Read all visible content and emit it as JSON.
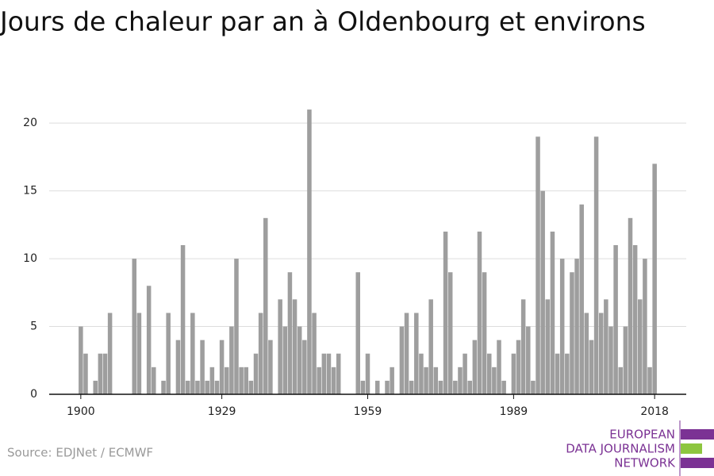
{
  "chart_data": {
    "type": "bar",
    "title": "Jours de chaleur par an à Oldenbourg et environs",
    "source": "Source: EDJNet / ECMWF",
    "logo": [
      "EUROPEAN",
      "DATA JOURNALISM",
      "NETWORK"
    ],
    "x": [
      1900,
      1901,
      1902,
      1903,
      1904,
      1905,
      1906,
      1907,
      1908,
      1909,
      1910,
      1911,
      1912,
      1913,
      1914,
      1915,
      1916,
      1917,
      1918,
      1919,
      1920,
      1921,
      1922,
      1923,
      1924,
      1925,
      1926,
      1927,
      1928,
      1929,
      1930,
      1931,
      1932,
      1933,
      1934,
      1935,
      1936,
      1937,
      1938,
      1939,
      1940,
      1941,
      1942,
      1943,
      1944,
      1945,
      1946,
      1947,
      1948,
      1949,
      1950,
      1951,
      1952,
      1953,
      1954,
      1955,
      1956,
      1957,
      1958,
      1959,
      1960,
      1961,
      1962,
      1963,
      1964,
      1965,
      1966,
      1967,
      1968,
      1969,
      1970,
      1971,
      1972,
      1973,
      1974,
      1975,
      1976,
      1977,
      1978,
      1979,
      1980,
      1981,
      1982,
      1983,
      1984,
      1985,
      1986,
      1987,
      1988,
      1989,
      1990,
      1991,
      1992,
      1993,
      1994,
      1995,
      1996,
      1997,
      1998,
      1999,
      2000,
      2001,
      2002,
      2003,
      2004,
      2005,
      2006,
      2007,
      2008,
      2009,
      2010,
      2011,
      2012,
      2013,
      2014,
      2015,
      2016,
      2017,
      2018
    ],
    "values": [
      5,
      3,
      0,
      1,
      3,
      3,
      6,
      0,
      0,
      0,
      0,
      10,
      6,
      0,
      8,
      2,
      0,
      1,
      6,
      0,
      4,
      11,
      1,
      6,
      1,
      4,
      1,
      2,
      1,
      4,
      2,
      5,
      10,
      2,
      2,
      1,
      3,
      6,
      13,
      4,
      0,
      7,
      5,
      9,
      7,
      5,
      4,
      21,
      6,
      2,
      3,
      3,
      2,
      3,
      0,
      0,
      0,
      9,
      1,
      3,
      0,
      1,
      0,
      1,
      2,
      0,
      5,
      6,
      1,
      6,
      3,
      2,
      7,
      2,
      1,
      12,
      9,
      1,
      2,
      3,
      1,
      4,
      12,
      9,
      3,
      2,
      4,
      1,
      0,
      3,
      4,
      7,
      5,
      1,
      19,
      15,
      7,
      12,
      3,
      10,
      3,
      9,
      10,
      14,
      6,
      4,
      19,
      6,
      7,
      5,
      11,
      2,
      5,
      13,
      11,
      7,
      10,
      2,
      17
    ],
    "color": "#9e9e9e",
    "xlim": [
      1893.5,
      2024.5
    ],
    "xticks": [
      1900,
      1929,
      1959,
      1989,
      2018
    ],
    "ylim": [
      0,
      22
    ],
    "yticks": [
      0,
      5,
      10,
      15,
      20
    ],
    "grid": true
  }
}
